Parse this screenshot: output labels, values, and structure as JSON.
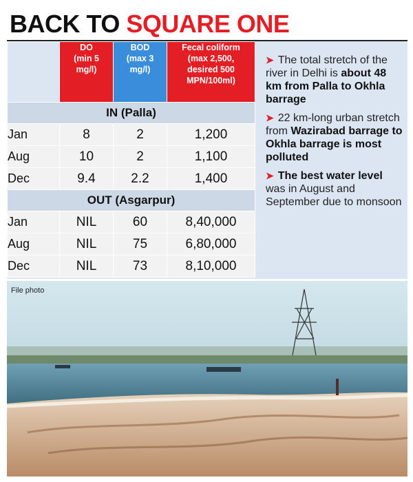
{
  "headline": {
    "part1": "BACK TO ",
    "part2": "SQUARE ONE"
  },
  "table": {
    "columns": [
      {
        "lines": [
          "DO",
          "(min 5",
          "mg/l)"
        ]
      },
      {
        "lines": [
          "BOD",
          "(max 3",
          "mg/l)"
        ]
      },
      {
        "lines": [
          "Fecal coliform",
          "(max 2,500,",
          "desired 500",
          "MPN/100ml)"
        ]
      }
    ],
    "sections": [
      {
        "title": "IN (Palla)",
        "rows": [
          {
            "month": "Jan",
            "do": "8",
            "bod": "2",
            "fc": "1,200"
          },
          {
            "month": "Aug",
            "do": "10",
            "bod": "2",
            "fc": "1,100"
          },
          {
            "month": "Dec",
            "do": "9.4",
            "bod": "2.2",
            "fc": "1,400"
          }
        ]
      },
      {
        "title": "OUT (Asgarpur)",
        "rows": [
          {
            "month": "Jan",
            "do": "NIL",
            "bod": "60",
            "fc": "8,40,000"
          },
          {
            "month": "Aug",
            "do": "NIL",
            "bod": "75",
            "fc": "6,80,000"
          },
          {
            "month": "Dec",
            "do": "NIL",
            "bod": "73",
            "fc": "8,10,000"
          }
        ]
      }
    ]
  },
  "notes": {
    "arrow": "➤",
    "n1": {
      "plain": "The total stretch of the river in Delhi is ",
      "bold": "about 48 km from Palla to Okhla barrage"
    },
    "n2": {
      "plain": "22 km-long urban stretch from ",
      "bold": "Wazirabad barrage to Okhla barrage is most polluted"
    },
    "n3": {
      "bold": "The best water level",
      "plain": " was in August and September due to monsoon"
    }
  },
  "photo": {
    "caption": "File photo"
  },
  "colors": {
    "accent_red": "#e31e24",
    "accent_blue": "#3a8ddb",
    "panel_blue": "#dce6f2"
  }
}
